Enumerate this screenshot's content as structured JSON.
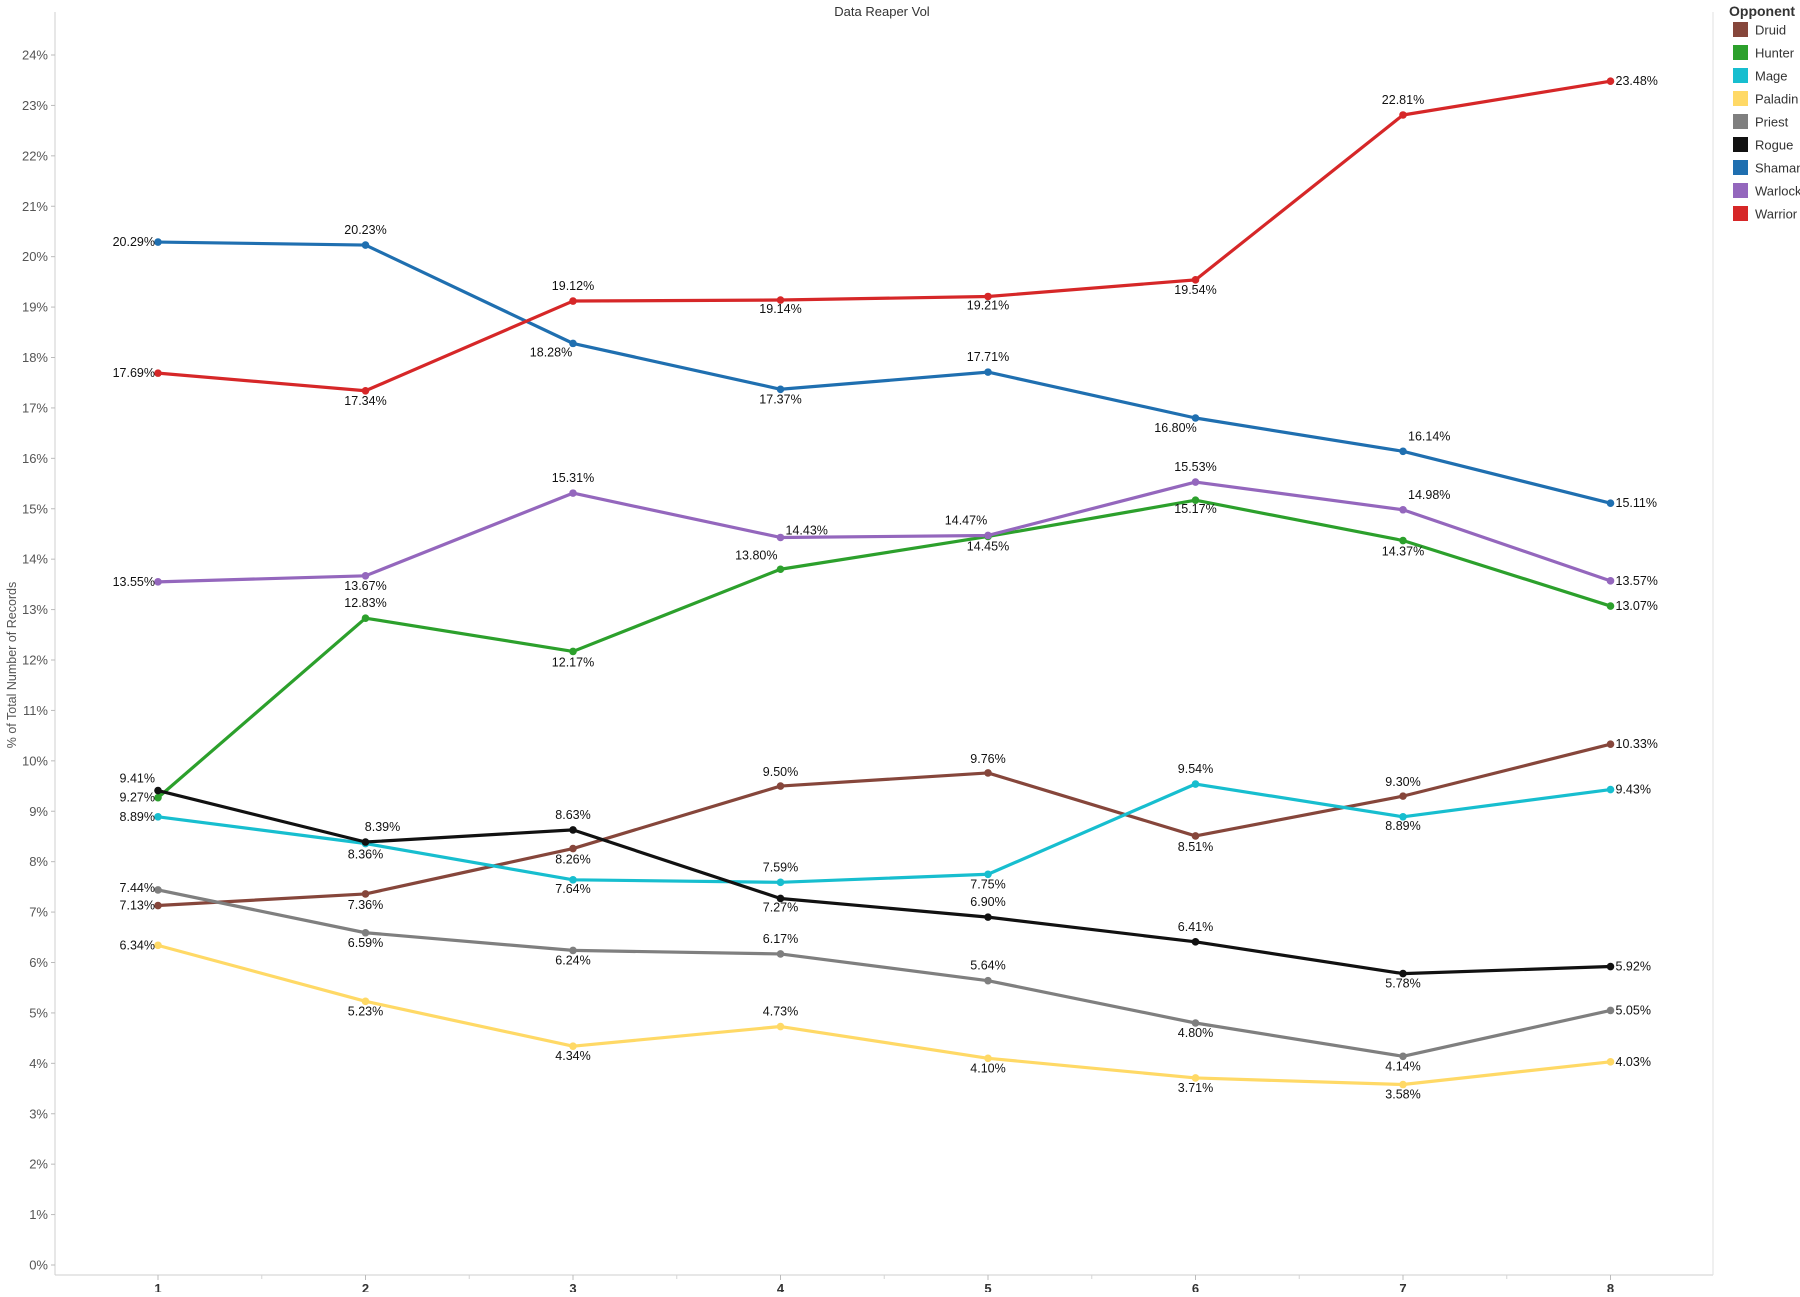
{
  "chart_data": {
    "type": "line",
    "title": "Data Reaper Vol",
    "xlabel": "",
    "ylabel": "% of Total Number of Records",
    "x": [
      1,
      2,
      3,
      4,
      5,
      6,
      7,
      8
    ],
    "x_tick_labels": [
      "1",
      "2",
      "3",
      "4",
      "5",
      "6",
      "7",
      "8"
    ],
    "ylim": [
      0,
      24
    ],
    "y_ticks": [
      0,
      1,
      2,
      3,
      4,
      5,
      6,
      7,
      8,
      9,
      10,
      11,
      12,
      13,
      14,
      15,
      16,
      17,
      18,
      19,
      20,
      21,
      22,
      23,
      24
    ],
    "y_tick_labels": [
      "0%",
      "1%",
      "2%",
      "3%",
      "4%",
      "5%",
      "6%",
      "7%",
      "8%",
      "9%",
      "10%",
      "11%",
      "12%",
      "13%",
      "14%",
      "15%",
      "16%",
      "17%",
      "18%",
      "19%",
      "20%",
      "21%",
      "22%",
      "23%",
      "24%"
    ],
    "grid": false,
    "legend_title": "Opponent",
    "legend_position": "top-right",
    "series": [
      {
        "name": "Druid",
        "color": "#86463b",
        "values": [
          7.13,
          7.36,
          8.26,
          9.5,
          9.76,
          8.51,
          9.3,
          10.33
        ],
        "labels": [
          "7.13%",
          "7.36%",
          "8.26%",
          "9.50%",
          "9.76%",
          "8.51%",
          "9.30%",
          "10.33%"
        ]
      },
      {
        "name": "Hunter",
        "color": "#2ca02c",
        "values": [
          9.27,
          12.83,
          12.17,
          13.8,
          14.45,
          15.17,
          14.37,
          13.07
        ],
        "labels": [
          "9.27%",
          "12.83%",
          "12.17%",
          "13.80%",
          "14.45%",
          "15.17%",
          "14.37%",
          "13.07%"
        ]
      },
      {
        "name": "Mage",
        "color": "#17becf",
        "values": [
          8.89,
          8.36,
          7.64,
          7.59,
          7.75,
          9.54,
          8.89,
          9.43
        ],
        "labels": [
          "8.89%",
          "8.36%",
          "7.64%",
          "7.59%",
          "7.75%",
          "9.54%",
          "8.89%",
          "9.43%"
        ]
      },
      {
        "name": "Paladin",
        "color": "#ffd966",
        "values": [
          6.34,
          5.23,
          4.34,
          4.73,
          4.1,
          3.71,
          3.58,
          4.03
        ],
        "labels": [
          "6.34%",
          "5.23%",
          "4.34%",
          "4.73%",
          "4.10%",
          "3.71%",
          "3.58%",
          "4.03%"
        ]
      },
      {
        "name": "Priest",
        "color": "#7f7f7f",
        "values": [
          7.44,
          6.59,
          6.24,
          6.17,
          5.64,
          4.8,
          4.14,
          5.05
        ],
        "labels": [
          "7.44%",
          "6.59%",
          "6.24%",
          "6.17%",
          "5.64%",
          "4.80%",
          "4.14%",
          "5.05%"
        ]
      },
      {
        "name": "Rogue",
        "color": "#111111",
        "values": [
          9.41,
          8.39,
          8.63,
          7.27,
          6.9,
          6.41,
          5.78,
          5.92
        ],
        "labels": [
          "9.41%",
          "8.39%",
          "8.63%",
          "7.27%",
          "6.90%",
          "6.41%",
          "5.78%",
          "5.92%"
        ]
      },
      {
        "name": "Shaman",
        "color": "#1f6fb0",
        "values": [
          20.29,
          20.23,
          18.28,
          17.37,
          17.71,
          16.8,
          16.14,
          15.11
        ],
        "labels": [
          "20.29%",
          "20.23%",
          "18.28%",
          "17.37%",
          "17.71%",
          "16.80%",
          "16.14%",
          "15.11%"
        ]
      },
      {
        "name": "Warlock",
        "color": "#9467bd",
        "values": [
          13.55,
          13.67,
          15.31,
          14.43,
          14.47,
          15.53,
          14.98,
          13.57
        ],
        "labels": [
          "13.55%",
          "13.67%",
          "15.31%",
          "14.43%",
          "14.47%",
          "15.53%",
          "14.98%",
          "13.57%"
        ]
      },
      {
        "name": "Warrior",
        "color": "#d62728",
        "values": [
          17.69,
          17.34,
          19.12,
          19.14,
          19.21,
          19.54,
          22.81,
          23.48
        ],
        "labels": [
          "17.69%",
          "17.34%",
          "19.12%",
          "19.14%",
          "19.21%",
          "19.54%",
          "22.81%",
          "23.48%"
        ]
      }
    ]
  }
}
